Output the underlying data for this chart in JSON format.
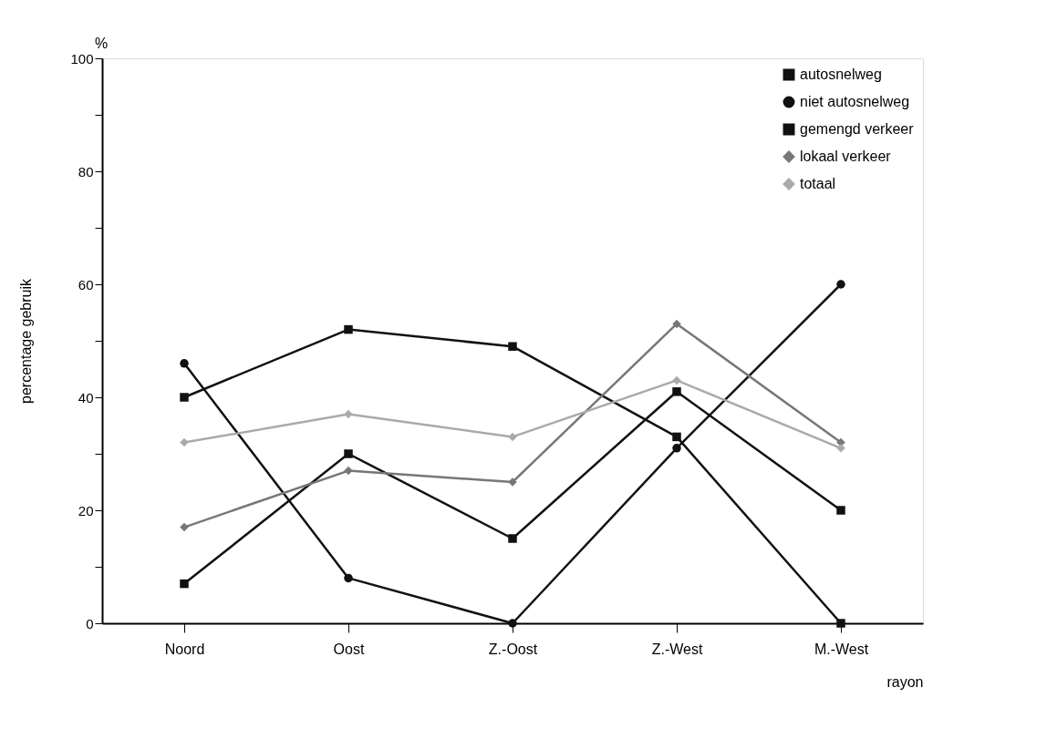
{
  "chart_data": {
    "type": "line",
    "categories": [
      "Noord",
      "Oost",
      "Z.-Oost",
      "Z.-West",
      "M.-West"
    ],
    "series": [
      {
        "name": "autosnelweg",
        "color": "#111111",
        "marker": "square",
        "values": [
          7,
          30,
          15,
          41,
          20
        ]
      },
      {
        "name": "niet autosnelweg",
        "color": "#111111",
        "marker": "circle",
        "values": [
          46,
          8,
          0,
          31,
          60
        ]
      },
      {
        "name": "gemengd verkeer",
        "color": "#111111",
        "marker": "square",
        "values": [
          40,
          52,
          49,
          33,
          0
        ]
      },
      {
        "name": "lokaal verkeer",
        "color": "#777777",
        "marker": "diamond",
        "values": [
          17,
          27,
          25,
          53,
          32
        ]
      },
      {
        "name": "totaal",
        "color": "#aaaaaa",
        "marker": "diamond",
        "values": [
          32,
          37,
          33,
          43,
          31
        ]
      }
    ],
    "ylabel": "percentage gebruik",
    "xlabel": "rayon",
    "annotations": [
      "%"
    ],
    "ylim": [
      0,
      100
    ],
    "yticks": [
      0,
      {
        "value": 10,
        "label": null
      },
      20,
      {
        "value": 30,
        "label": null
      },
      40,
      {
        "value": 50,
        "label": null
      },
      60,
      {
        "value": 70,
        "label": null
      },
      80,
      {
        "value": 90,
        "label": null
      },
      100
    ],
    "grid": false,
    "legend": "top right",
    "line_style": "solid"
  }
}
